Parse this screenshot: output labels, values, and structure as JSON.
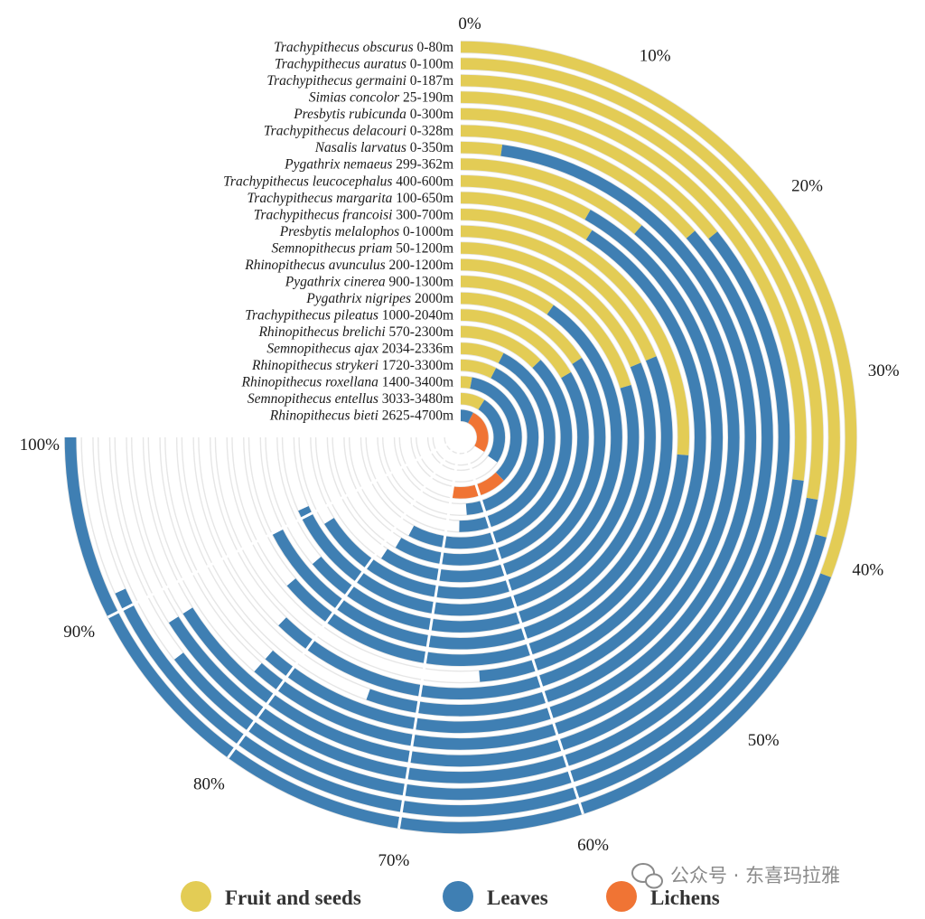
{
  "watermark": {
    "text": "公众号 · 东喜玛拉雅",
    "icon": "wechat-icon"
  },
  "chart_data": {
    "type": "radial-stacked-bar",
    "title": "",
    "angular_ticks": [
      "0%",
      "10%",
      "20%",
      "30%",
      "40%",
      "50%",
      "60%",
      "70%",
      "80%",
      "90%",
      "100%"
    ],
    "angular_range_percent": [
      0,
      100
    ],
    "angular_span_degrees": 270,
    "grid": true,
    "legend_position": "bottom",
    "colors": {
      "Fruit and seeds": "#E3CC55",
      "Leaves": "#3F7FB3",
      "Lichens": "#F07434",
      "track": "#E6E6E6"
    },
    "series_names": [
      "Fruit and seeds",
      "Leaves",
      "Lichens"
    ],
    "rows": [
      {
        "species": "Trachypithecus obscurus",
        "range": "0-80m",
        "values": [
          41,
          59,
          0
        ]
      },
      {
        "species": "Trachypithecus auratus",
        "range": "0-100m",
        "values": [
          39,
          52,
          0
        ]
      },
      {
        "species": "Trachypithecus germaini",
        "range": "0-187m",
        "values": [
          37,
          49,
          0
        ]
      },
      {
        "species": "Simias concolor",
        "range": "25-190m",
        "values": [
          36,
          52,
          0
        ]
      },
      {
        "species": "Presbytis rubicunda",
        "range": "0-300m",
        "values": [
          19,
          69,
          0
        ]
      },
      {
        "species": "Trachypithecus delacouri",
        "range": "0-328m",
        "values": [
          18,
          64,
          0
        ]
      },
      {
        "species": "Nasalis larvatus",
        "range": "0-350m",
        "values": [
          3,
          79,
          0
        ]
      },
      {
        "species": "Pygathrix nemaeus",
        "range": "299-362m",
        "values": [
          15,
          59,
          0
        ]
      },
      {
        "species": "Trachypithecus leucocephalus",
        "range": "400-600m",
        "values": [
          11,
          72,
          0
        ]
      },
      {
        "species": "Trachypithecus margarita",
        "range": "100-650m",
        "values": [
          12,
          53,
          0
        ]
      },
      {
        "species": "Trachypithecus francoisi",
        "range": "300-700m",
        "values": [
          35,
          50,
          0
        ]
      },
      {
        "species": "Presbytis melalophos",
        "range": "0-1000m",
        "values": [
          25,
          65,
          0
        ]
      },
      {
        "species": "Semnopithecus priam",
        "range": "50-1200m",
        "values": [
          25,
          60,
          0
        ]
      },
      {
        "species": "Rhinopithecus avunculus",
        "range": "200-1200m",
        "values": [
          27,
          64,
          0
        ]
      },
      {
        "species": "Pygathrix cinerea",
        "range": "900-1300m",
        "values": [
          13,
          75,
          0
        ]
      },
      {
        "species": "Pygathrix nigripes",
        "range": "2000m",
        "values": [
          21,
          58,
          0
        ]
      },
      {
        "species": "Trachypithecus pileatus",
        "range": "1000-2040m",
        "values": [
          22,
          56,
          0
        ]
      },
      {
        "species": "Rhinopithecus brelichi",
        "range": "570-2300m",
        "values": [
          17,
          60,
          0
        ]
      },
      {
        "species": "Semnopithecus ajax",
        "range": "2034-2336m",
        "values": [
          10,
          57,
          0
        ]
      },
      {
        "species": "Rhinopithecus strykeri",
        "range": "1720-3300m",
        "values": [
          10,
          55,
          0
        ]
      },
      {
        "species": "Rhinopithecus roxellana",
        "range": "1400-3400m",
        "values": [
          4,
          46,
          20
        ]
      },
      {
        "species": "Semnopithecus entellus",
        "range": "3033-3480m",
        "values": [
          12,
          34,
          0
        ]
      },
      {
        "species": "Rhinopithecus bieti",
        "range": "2625-4700m",
        "values": [
          0,
          10,
          35
        ]
      }
    ],
    "legend": [
      {
        "label": "Fruit and seeds",
        "color": "#E3CC55"
      },
      {
        "label": "Leaves",
        "color": "#3F7FB3"
      },
      {
        "label": "Lichens",
        "color": "#F07434"
      }
    ]
  }
}
